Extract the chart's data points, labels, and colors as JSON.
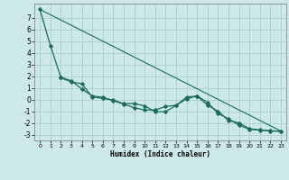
{
  "xlabel": "Humidex (Indice chaleur)",
  "ylabel": "",
  "bg_color": "#cce8e8",
  "grid_color": "#aad0d0",
  "line_color": "#1a6b5a",
  "xlim": [
    -0.5,
    23.5
  ],
  "ylim": [
    -3.5,
    8.2
  ],
  "yticks": [
    -3,
    -2,
    -1,
    0,
    1,
    2,
    3,
    4,
    5,
    6,
    7
  ],
  "xticks": [
    0,
    1,
    2,
    3,
    4,
    5,
    6,
    7,
    8,
    9,
    10,
    11,
    12,
    13,
    14,
    15,
    16,
    17,
    18,
    19,
    20,
    21,
    22,
    23
  ],
  "series": [
    {
      "x": [
        0,
        1,
        2,
        3,
        4,
        5,
        6,
        7,
        8,
        9,
        10,
        11,
        12,
        13,
        14,
        15,
        16,
        17,
        18,
        19,
        20,
        21,
        22,
        23
      ],
      "y": [
        7.7,
        4.6,
        1.9,
        1.6,
        0.9,
        0.3,
        0.2,
        -0.1,
        -0.4,
        -0.7,
        -0.9,
        -0.9,
        -0.6,
        -0.5,
        0.2,
        0.3,
        -0.5,
        -1.0,
        -1.8,
        -2.0,
        -2.5,
        -2.6,
        -2.7,
        -2.7
      ],
      "marker": "D",
      "markersize": 1.8,
      "linewidth": 0.9
    },
    {
      "x": [
        2,
        3,
        4,
        5,
        6,
        7,
        8,
        9,
        10,
        11,
        12,
        13,
        14,
        15,
        16,
        17,
        18,
        19,
        20,
        21,
        22,
        23
      ],
      "y": [
        1.85,
        1.5,
        1.35,
        0.2,
        0.1,
        -0.05,
        -0.35,
        -0.35,
        -0.55,
        -1.05,
        -1.05,
        -0.5,
        0.05,
        0.3,
        -0.25,
        -1.2,
        -1.65,
        -2.2,
        -2.55,
        -2.62,
        -2.68,
        -2.72
      ],
      "marker": "D",
      "markersize": 1.8,
      "linewidth": 0.9
    },
    {
      "x": [
        0,
        23
      ],
      "y": [
        7.7,
        -2.7
      ],
      "marker": null,
      "markersize": 0,
      "linewidth": 0.8
    }
  ]
}
